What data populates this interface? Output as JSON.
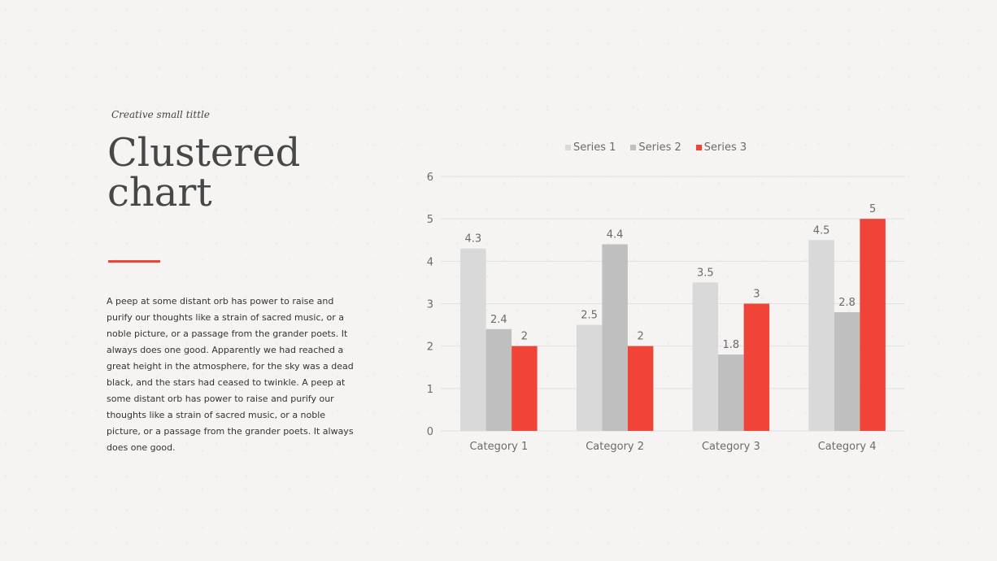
{
  "slide": {
    "small_title": "Creative small tittle",
    "title": "Clustered chart",
    "body": "A peep at some distant orb has power to raise and purify our thoughts like a strain of sacred music, or a noble picture, or a passage from the grander poets. It always does one good. Apparently we had reached a great height in the atmosphere, for the sky was a dead black, and the stars had ceased to twinkle. A peep at some distant orb has power to raise and purify our thoughts like a strain of sacred music, or a noble picture, or a passage from the grander poets. It always does one good.",
    "accent_color": "#f04438"
  },
  "chart_data": {
    "type": "bar",
    "categories": [
      "Category 1",
      "Category 2",
      "Category 3",
      "Category 4"
    ],
    "series": [
      {
        "name": "Series 1",
        "values": [
          4.3,
          2.5,
          3.5,
          4.5
        ],
        "color": "#d9d9d9"
      },
      {
        "name": "Series 2",
        "values": [
          2.4,
          4.4,
          1.8,
          2.8
        ],
        "color": "#bfbfbf"
      },
      {
        "name": "Series 3",
        "values": [
          2,
          2,
          3,
          5
        ],
        "color": "#f04438"
      }
    ],
    "ylim": [
      0,
      6
    ],
    "yticks": [
      0,
      1,
      2,
      3,
      4,
      5,
      6
    ],
    "grid": true,
    "legend": "top",
    "data_labels": true
  }
}
